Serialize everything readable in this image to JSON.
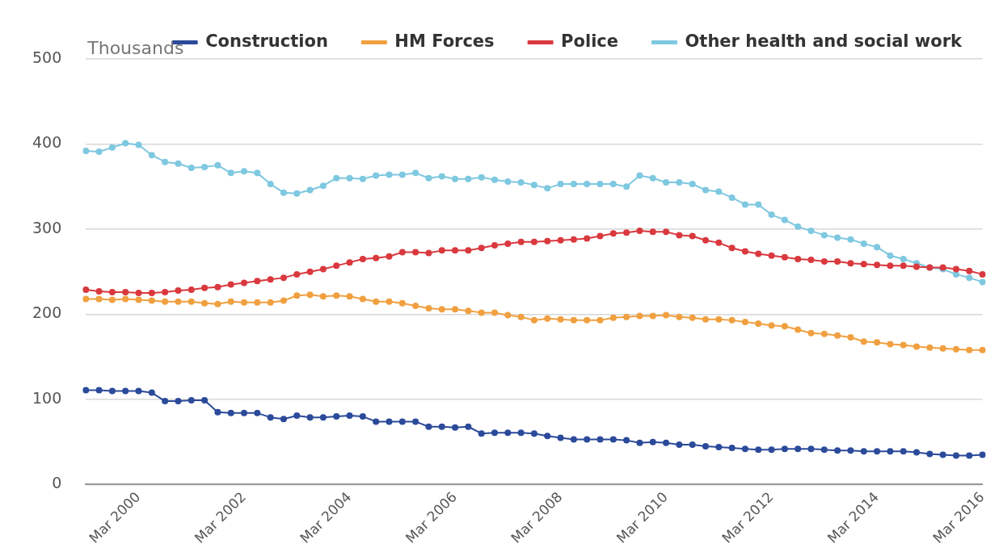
{
  "chart_data": {
    "type": "line",
    "ylabel": "Thousands",
    "categories": [
      null,
      null,
      null,
      null,
      "Mar 2000",
      null,
      null,
      null,
      null,
      null,
      null,
      null,
      "Mar 2002",
      null,
      null,
      null,
      null,
      null,
      null,
      null,
      "Mar 2004",
      null,
      null,
      null,
      null,
      null,
      null,
      null,
      "Mar 2006",
      null,
      null,
      null,
      null,
      null,
      null,
      null,
      "Mar 2008",
      null,
      null,
      null,
      null,
      null,
      null,
      null,
      "Mar 2010",
      null,
      null,
      null,
      null,
      null,
      null,
      null,
      "Mar 2012",
      null,
      null,
      null,
      null,
      null,
      null,
      null,
      "Mar 2014",
      null,
      null,
      null,
      null,
      null,
      null,
      null,
      "Mar 2016"
    ],
    "series": [
      {
        "name": "Construction",
        "color": "#2b4a9a",
        "values": [
          111,
          111,
          110,
          110,
          110,
          108,
          98,
          98,
          99,
          99,
          85,
          84,
          84,
          84,
          79,
          77,
          81,
          79,
          79,
          80,
          81,
          80,
          74,
          74,
          74,
          74,
          68,
          68,
          67,
          68,
          60,
          61,
          61,
          61,
          60,
          57,
          55,
          53,
          53,
          53,
          53,
          52,
          49,
          50,
          49,
          47,
          47,
          45,
          44,
          43,
          42,
          41,
          41,
          42,
          42,
          42,
          41,
          40,
          40,
          39,
          39,
          39,
          39,
          38,
          36,
          35,
          34,
          34,
          35
        ]
      },
      {
        "name": "HM Forces",
        "color": "#f0a040",
        "values": [
          218,
          218,
          217,
          218,
          217,
          216,
          215,
          215,
          215,
          213,
          212,
          215,
          214,
          214,
          214,
          216,
          222,
          223,
          221,
          222,
          221,
          218,
          215,
          215,
          213,
          210,
          207,
          206,
          206,
          204,
          202,
          202,
          199,
          197,
          193,
          195,
          194,
          193,
          193,
          193,
          196,
          197,
          198,
          198,
          199,
          197,
          196,
          194,
          194,
          193,
          191,
          189,
          187,
          186,
          182,
          178,
          177,
          175,
          173,
          168,
          167,
          165,
          164,
          162,
          161,
          160,
          159,
          158,
          158
        ]
      },
      {
        "name": "Police",
        "color": "#d9393e",
        "values": [
          229,
          227,
          226,
          226,
          225,
          225,
          226,
          228,
          229,
          231,
          232,
          235,
          237,
          239,
          241,
          243,
          247,
          250,
          253,
          257,
          261,
          265,
          266,
          268,
          273,
          273,
          272,
          275,
          275,
          275,
          278,
          281,
          283,
          285,
          285,
          286,
          287,
          288,
          289,
          292,
          295,
          296,
          298,
          297,
          297,
          293,
          292,
          287,
          284,
          278,
          274,
          271,
          269,
          267,
          265,
          264,
          262,
          262,
          260,
          259,
          258,
          257,
          257,
          256,
          255,
          255,
          253,
          251,
          247
        ]
      },
      {
        "name": "Other health and social work",
        "color": "#7ec8e0",
        "values": [
          392,
          391,
          396,
          401,
          399,
          387,
          379,
          377,
          372,
          373,
          375,
          366,
          368,
          366,
          353,
          343,
          342,
          346,
          351,
          360,
          360,
          359,
          363,
          364,
          364,
          366,
          360,
          362,
          359,
          359,
          361,
          358,
          356,
          355,
          352,
          348,
          353,
          353,
          353,
          353,
          353,
          350,
          363,
          360,
          355,
          355,
          353,
          346,
          344,
          337,
          329,
          329,
          317,
          311,
          303,
          298,
          293,
          290,
          288,
          283,
          279,
          269,
          265,
          260,
          255,
          253,
          247,
          243,
          238
        ]
      }
    ],
    "ylim": [
      0,
      500
    ],
    "yticks": [
      0,
      100,
      200,
      300,
      400,
      500
    ],
    "grid": "y",
    "legend": "top",
    "marker": "circle",
    "line_style": "solid"
  }
}
